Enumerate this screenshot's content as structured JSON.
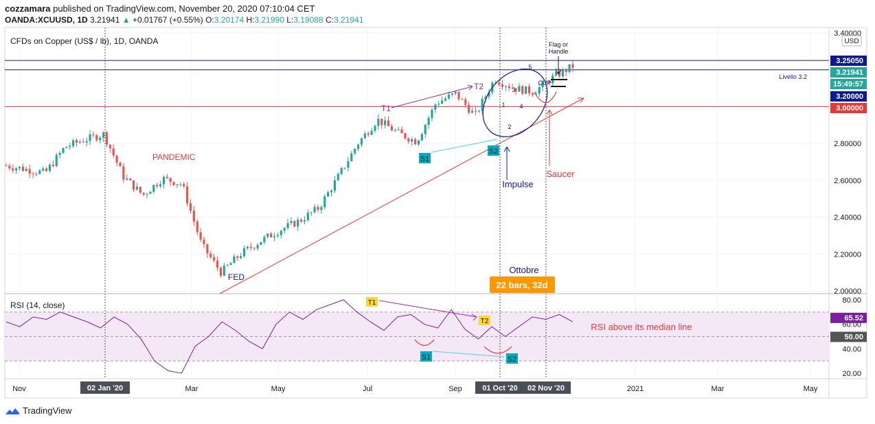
{
  "header": {
    "publisher": "cozzamara",
    "published_text": " published on TradingView.com, November 20, 2020 07:10:04 CET",
    "symbol": "OANDA:XCUUSD, 1D",
    "last": "3.21941",
    "change": "+0.01767 (+0.55%)",
    "o_label": "O:",
    "o": "3.20174",
    "h_label": "H:",
    "h": "3.21990",
    "l_label": "L:",
    "l": "3.19088",
    "c_label": "C:",
    "c": "3.21941"
  },
  "main_pane": {
    "title": "CFDs on Copper (US$ / lb), 1D, OANDA",
    "currency": "USD"
  },
  "rsi_pane": {
    "title": "RSI (14, close)"
  },
  "footer": {
    "brand": "TradingView"
  },
  "colors": {
    "up": "#26a69a",
    "down": "#ef5350",
    "rsi_line": "#7b1fa2",
    "rsi_band": "#f3e5f5",
    "navy": "#0d1a8c",
    "red": "#e53935",
    "orange": "#ff9800",
    "cyan": "#00bcd4",
    "violet": "#9c27b0"
  },
  "chart_data": [
    {
      "type": "candlestick",
      "title": "CFDs on Copper (US$ / lb), 1D, OANDA",
      "ylabel": "USD",
      "ylim": [
        2.0,
        3.4
      ],
      "y_ticks": [
        "3.40000",
        "3.20000",
        "3.00000",
        "2.80000",
        "2.60000",
        "2.40000",
        "2.20000",
        "2.00000"
      ],
      "x_ticks": [
        "Nov",
        "02 Jan '20",
        "Mar",
        "May",
        "Jul",
        "Sep",
        "01 Oct '20",
        "02 Nov '20",
        "2021",
        "Mar",
        "May"
      ],
      "closes_approx": [
        {
          "x": "Nov 2019",
          "y": 2.68
        },
        {
          "x": "mid Nov 2019",
          "y": 2.66
        },
        {
          "x": "Dec 2019",
          "y": 2.64
        },
        {
          "x": "mid Dec 2019",
          "y": 2.78
        },
        {
          "x": "02 Jan '20",
          "y": 2.82
        },
        {
          "x": "mid Jan 2020",
          "y": 2.85
        },
        {
          "x": "late Jan 2020",
          "y": 2.62
        },
        {
          "x": "Feb 2020",
          "y": 2.52
        },
        {
          "x": "mid Feb 2020",
          "y": 2.61
        },
        {
          "x": "Mar 2020",
          "y": 2.58
        },
        {
          "x": "mid Mar 2020",
          "y": 2.25
        },
        {
          "x": "late Mar 2020",
          "y": 2.1
        },
        {
          "x": "Apr 2020",
          "y": 2.2
        },
        {
          "x": "mid Apr 2020",
          "y": 2.27
        },
        {
          "x": "May 2020",
          "y": 2.33
        },
        {
          "x": "mid May 2020",
          "y": 2.38
        },
        {
          "x": "Jun 2020",
          "y": 2.45
        },
        {
          "x": "mid Jun 2020",
          "y": 2.62
        },
        {
          "x": "Jul 2020",
          "y": 2.8
        },
        {
          "x": "mid Jul 2020",
          "y": 2.93
        },
        {
          "x": "Aug 2020",
          "y": 2.86
        },
        {
          "x": "mid Aug 2020",
          "y": 2.81
        },
        {
          "x": "Sep 2020",
          "y": 3.02
        },
        {
          "x": "mid Sep 2020",
          "y": 3.07
        },
        {
          "x": "01 Oct '20",
          "y": 2.95
        },
        {
          "x": "mid Oct 2020",
          "y": 3.15
        },
        {
          "x": "late Oct 2020",
          "y": 3.1
        },
        {
          "x": "02 Nov '20",
          "y": 3.08
        },
        {
          "x": "mid Nov 2020",
          "y": 3.16
        },
        {
          "x": "20 Nov 2020",
          "y": 3.21941
        }
      ],
      "price_labels": [
        {
          "text": "3.25050",
          "color": "#0d1a8c"
        },
        {
          "text": "3.21941",
          "color": "#26a69a"
        },
        {
          "text": "15:49:57",
          "color": "#26a69a"
        },
        {
          "text": "3.20000",
          "color": "#0d1a8c"
        },
        {
          "text": "3.00000",
          "color": "#e53935"
        }
      ],
      "horizontal_lines": [
        {
          "value": 3.2505,
          "color": "#0d1a8c"
        },
        {
          "value": 3.2,
          "color": "#0d1a8c",
          "label": "Livello 3.2"
        },
        {
          "value": 3.0,
          "color": "#e53935"
        }
      ],
      "annotations": {
        "pandemic": "PANDEMIC",
        "fed": "FED",
        "t1": "T1",
        "t2": "T2",
        "s1": "S1",
        "s2": "S2",
        "impulse": "Impulse",
        "saucer": "Saucer",
        "flag_line1": "Flag or",
        "flag_line2": "Handle",
        "cup": "CUP",
        "wave_labels": [
          "1",
          "2",
          "3",
          "4",
          "5"
        ],
        "ottobre": "Ottobre",
        "bars": "22 bars, 32d",
        "livello": "Livello 3.2"
      }
    },
    {
      "type": "line",
      "title": "RSI (14, close)",
      "ylim": [
        15,
        85
      ],
      "y_ticks": [
        "80.00",
        "60.00",
        "50.00",
        "40.00",
        "20.00"
      ],
      "current_value": "65.52",
      "median_label": "50.00",
      "band": [
        30,
        70
      ],
      "annotations": {
        "t1": "T1",
        "t2": "T2",
        "s1": "S1",
        "s2": "S2",
        "note": "RSI above its median line"
      }
    }
  ]
}
